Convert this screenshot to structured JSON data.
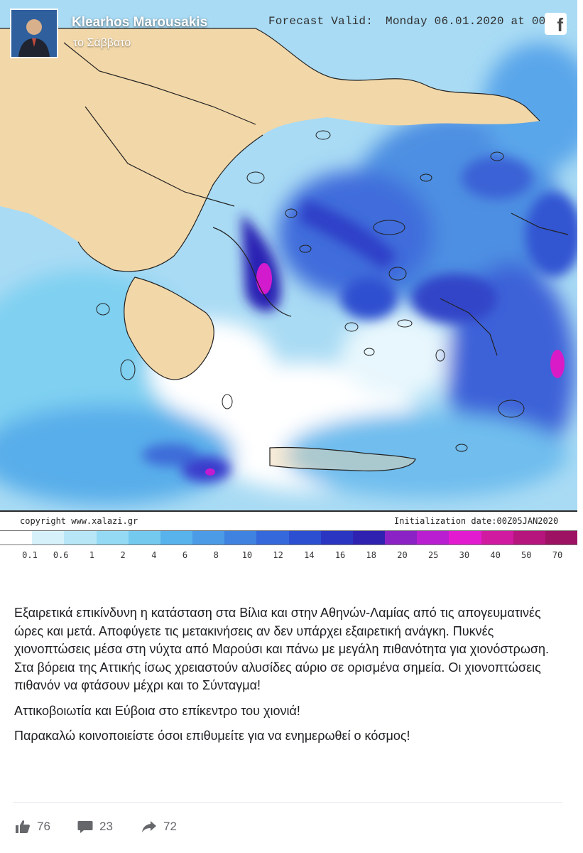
{
  "header": {
    "author": "Klearhos Marousakis",
    "time": "το Σάββατο",
    "forecast_valid_label": "Forecast Valid:",
    "forecast_valid_value": "Monday 06.01.2020 at 00"
  },
  "map": {
    "copyright": "copyright www.xalazi.gr",
    "initialization": "Initialization date:00Z05JAN2020",
    "colors": {
      "sea_white": "#ffffff",
      "light_cyan": "#bfe9f7",
      "cyan": "#7fd4f2",
      "sky_blue": "#58b2ec",
      "blue": "#3b82e0",
      "royal_blue": "#2c55d6",
      "indigo": "#2a22b8",
      "purple": "#8d1fc4",
      "magenta": "#e51bcf",
      "land": "#f2d7a8"
    }
  },
  "legend": {
    "labels": [
      "0.1",
      "0.6",
      "1",
      "2",
      "4",
      "6",
      "8",
      "10",
      "12",
      "14",
      "16",
      "18",
      "20",
      "25",
      "30",
      "40",
      "50",
      "70"
    ],
    "colors": [
      "#ffffff",
      "#d7f1fb",
      "#b7e6f7",
      "#95daf4",
      "#74c9ef",
      "#58b2ec",
      "#4b9be6",
      "#3f82e0",
      "#3568da",
      "#2c4fd2",
      "#2a36c2",
      "#3022b0",
      "#8a22c6",
      "#b91ed1",
      "#e31bd0",
      "#d01aa0",
      "#b5157d",
      "#9d1262"
    ]
  },
  "post": {
    "paragraphs": [
      "Εξαιρετικά επικίνδυνη η κατάσταση στα Βίλια και στην Αθηνών-Λαμίας από τις απογευματινές ώρες και μετά. Αποφύγετε τις μετακινήσεις αν δεν υπάρχει εξαιρετική ανάγκη. Πυκνές χιονοπτώσεις μέσα στη νύχτα από Μαρούσι και πάνω με μεγάλη πιθανότητα για χιονόστρωση. Στα βόρεια της Αττικής ίσως χρειαστούν αλυσίδες αύριο σε ορισμένα σημεία. Οι χιονοπτώσεις πιθανόν να φτάσουν μέχρι και το Σύνταγμα!",
      "Αττικοβοιωτία και Εύβοια στο επίκεντρο του χιονιά!",
      "Παρακαλώ κοινοποιείστε όσοι επιθυμείτε για να ενημερωθεί ο κόσμος!"
    ]
  },
  "reactions": {
    "likes": "76",
    "comments": "23",
    "shares": "72",
    "icon_color": "#65676b"
  }
}
